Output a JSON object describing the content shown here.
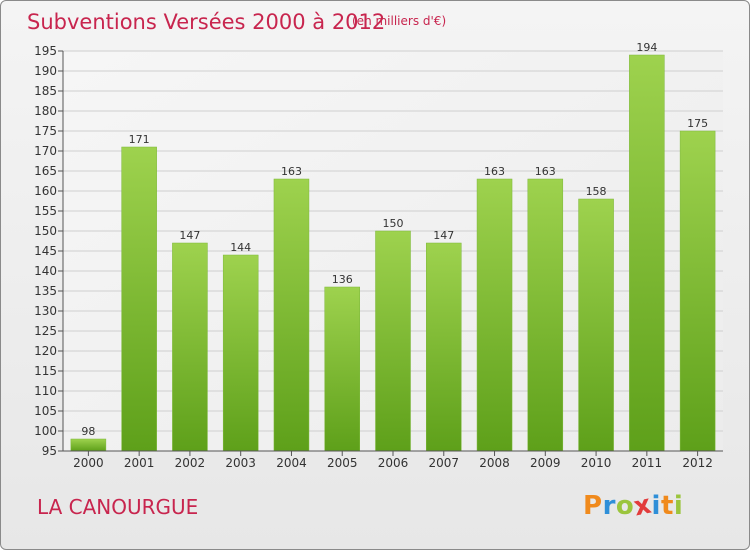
{
  "title": "Subventions Versées 2000 à 2012",
  "subtitle": "(en milliers d'€)",
  "city": "LA CANOURGUE",
  "logo": {
    "letters": [
      "P",
      "r",
      "o",
      "x",
      "i",
      "t",
      "i"
    ],
    "colors": [
      "#f08a1c",
      "#2f8fd8",
      "#9bc53d",
      "#e23c3c",
      "#2f8fd8",
      "#f08a1c",
      "#9bc53d"
    ]
  },
  "colors": {
    "title": "#c8254e",
    "bar_top": "#9ed24e",
    "bar_bottom": "#5ea01a",
    "grid": "#cfcfcf"
  },
  "chart_data": {
    "type": "bar",
    "title": "Subventions Versées 2000 à 2012",
    "subtitle": "(en milliers d'€)",
    "categories": [
      "2000",
      "2001",
      "2002",
      "2003",
      "2004",
      "2005",
      "2006",
      "2007",
      "2008",
      "2009",
      "2010",
      "2011",
      "2012"
    ],
    "values": [
      98,
      171,
      147,
      144,
      163,
      136,
      150,
      147,
      163,
      163,
      158,
      194,
      175
    ],
    "ylim": [
      95,
      195
    ],
    "yticks": [
      95,
      100,
      105,
      110,
      115,
      120,
      125,
      130,
      135,
      140,
      145,
      150,
      155,
      160,
      165,
      170,
      175,
      180,
      185,
      190,
      195
    ],
    "grid": true,
    "xlabel": "",
    "ylabel": ""
  }
}
